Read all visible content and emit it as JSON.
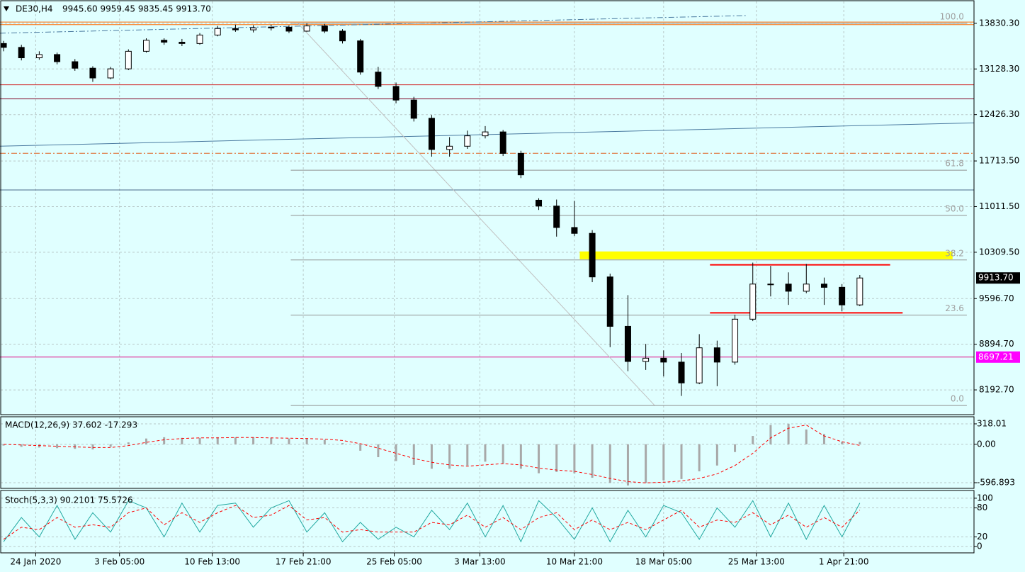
{
  "chart_data": [
    {
      "type": "candlestick",
      "title": "DE30,H4",
      "ohlc_label": "9945.60 9959.45 9835.45 9913.70",
      "xlim": [
        -0.2,
        54.4
      ],
      "xticks": [
        {
          "value": 1.8,
          "label": "24 Jan 2020"
        },
        {
          "value": 6.5,
          "label": "3 Feb 05:00"
        },
        {
          "value": 11.7,
          "label": "10 Feb 13:00"
        },
        {
          "value": 16.8,
          "label": "17 Feb 21:00"
        },
        {
          "value": 21.9,
          "label": "25 Feb 05:00"
        },
        {
          "value": 26.7,
          "label": "3 Mar 13:00"
        },
        {
          "value": 32,
          "label": "10 Mar 21:00"
        },
        {
          "value": 37,
          "label": "18 Mar 05:00"
        },
        {
          "value": 42.2,
          "label": "25 Mar 13:00"
        },
        {
          "value": 47.1,
          "label": "1 Apr 21:00"
        }
      ],
      "ylim": [
        7812,
        14167
      ],
      "yticks": [
        {
          "value": 13830.3,
          "label": "13830.30"
        },
        {
          "value": 13128.3,
          "label": "13128.30"
        },
        {
          "value": 12426.3,
          "label": "12426.30"
        },
        {
          "value": 11713.5,
          "label": "11713.50"
        },
        {
          "value": 11011.5,
          "label": "11011.50"
        },
        {
          "value": 10309.5,
          "label": "10309.50"
        },
        {
          "value": 9596.7,
          "label": "9596.70"
        },
        {
          "value": 8894.7,
          "label": "8894.70"
        },
        {
          "value": 8192.7,
          "label": "8192.70"
        }
      ],
      "grid": true,
      "up_color": "#ffffff",
      "down_color": "#000000",
      "ohlc": [
        [
          13520,
          13560,
          13400,
          13460
        ],
        [
          13460,
          13500,
          13260,
          13300
        ],
        [
          13300,
          13400,
          13270,
          13350
        ],
        [
          13350,
          13380,
          13200,
          13240
        ],
        [
          13240,
          13280,
          13100,
          13140
        ],
        [
          13140,
          13170,
          12930,
          12990
        ],
        [
          12990,
          13160,
          12970,
          13130
        ],
        [
          13130,
          13430,
          13110,
          13400
        ],
        [
          13400,
          13600,
          13380,
          13570
        ],
        [
          13570,
          13600,
          13500,
          13540
        ],
        [
          13540,
          13590,
          13480,
          13520
        ],
        [
          13520,
          13680,
          13500,
          13650
        ],
        [
          13650,
          13790,
          13630,
          13750
        ],
        [
          13750,
          13810,
          13700,
          13730
        ],
        [
          13730,
          13800,
          13690,
          13760
        ],
        [
          13760,
          13810,
          13720,
          13770
        ],
        [
          13770,
          13800,
          13680,
          13710
        ],
        [
          13710,
          13830,
          13700,
          13790
        ],
        [
          13790,
          13820,
          13680,
          13710
        ],
        [
          13710,
          13740,
          13520,
          13560
        ],
        [
          13560,
          13590,
          13040,
          13080
        ],
        [
          13080,
          13160,
          12820,
          12860
        ],
        [
          12860,
          12920,
          12600,
          12650
        ],
        [
          12650,
          12700,
          12320,
          12370
        ],
        [
          12370,
          12420,
          11780,
          11890
        ],
        [
          11890,
          12080,
          11780,
          11940
        ],
        [
          11940,
          12180,
          11900,
          12100
        ],
        [
          12100,
          12250,
          12060,
          12160
        ],
        [
          12160,
          12190,
          11790,
          11830
        ],
        [
          11830,
          11870,
          11450,
          11500
        ],
        [
          11110,
          11140,
          10960,
          11020
        ],
        [
          11020,
          11120,
          10550,
          10690
        ],
        [
          10690,
          11100,
          10560,
          10600
        ],
        [
          10600,
          10650,
          9850,
          9930
        ],
        [
          9930,
          9980,
          8850,
          9170
        ],
        [
          9170,
          9650,
          8480,
          8630
        ],
        [
          8630,
          8900,
          8500,
          8680
        ],
        [
          8680,
          8800,
          8400,
          8620
        ],
        [
          8620,
          8760,
          8100,
          8300
        ],
        [
          8300,
          9050,
          8280,
          8840
        ],
        [
          8840,
          8950,
          8250,
          8620
        ],
        [
          8620,
          9350,
          8580,
          9280
        ],
        [
          9280,
          10150,
          9250,
          9820
        ],
        [
          9820,
          10100,
          9630,
          9820
        ],
        [
          9820,
          10000,
          9500,
          9710
        ],
        [
          9710,
          10130,
          9680,
          9820
        ],
        [
          9820,
          9920,
          9500,
          9770
        ],
        [
          9770,
          9820,
          9400,
          9500
        ],
        [
          9500,
          9959.45,
          9480,
          9913.7
        ]
      ],
      "levels": [
        {
          "price": 13850,
          "color": "#ff6a00",
          "style": "solid",
          "from": -0.2
        },
        {
          "price": 13810,
          "color": "#ff6a00",
          "style": "solid",
          "from": -0.2
        },
        {
          "price": 12885,
          "color": "#d02020",
          "style": "solid",
          "from": -0.2
        },
        {
          "price": 12668,
          "color": "#800020",
          "style": "solid",
          "from": -0.2
        },
        {
          "price": 11832,
          "color": "#e06020",
          "style": "dashdot",
          "from": -0.2
        },
        {
          "price": 11267,
          "color": "#4a6a8a",
          "style": "solid",
          "from": -0.2
        },
        {
          "price": 8697.21,
          "color": "#e0108a",
          "style": "solid",
          "from": -0.2
        }
      ],
      "trend_lines": [
        {
          "start": [
            -0.2,
            11940
          ],
          "end": [
            54.4,
            12299
          ],
          "color": "#4a7aa0",
          "style": "solid"
        },
        {
          "start": [
            -0.2,
            13678
          ],
          "end": [
            41.7,
            13950
          ],
          "color": "#4a7aa0",
          "style": "dashdot"
        },
        {
          "start": [
            16.5,
            13830.3
          ],
          "end": [
            36.5,
            7953
          ],
          "color": "#c0c0c0",
          "style": "solid"
        }
      ],
      "fibo": {
        "from": 16.1,
        "to": 54,
        "color": "#909090",
        "levels": [
          {
            "value": 13830.3,
            "label": "100.0"
          },
          {
            "value": 11571,
            "label": "61.8"
          },
          {
            "value": 10876,
            "label": "50.0"
          },
          {
            "value": 10191,
            "label": "38.2"
          },
          {
            "value": 9344,
            "label": "23.6"
          },
          {
            "value": 7953,
            "label": "0.0"
          }
        ]
      },
      "zones": [
        {
          "from": 32.3,
          "to": 53.2,
          "low": 10202,
          "high": 10322,
          "color": "#ffff00"
        }
      ],
      "segments": [
        {
          "price": 10116,
          "from": 39.6,
          "to": 49.7,
          "color": "#ff0000"
        },
        {
          "price": 9377,
          "from": 39.6,
          "to": 50.4,
          "color": "#ff0000"
        }
      ],
      "price_tags": [
        {
          "value": 9913.7,
          "label": "9913.70",
          "bg": "#000000",
          "fg": "#ffffff"
        },
        {
          "value": 8697.21,
          "bg": "#ff00ff",
          "fg": "#ffffff"
        }
      ]
    },
    {
      "type": "macd",
      "title": "MACD(12,26,9) 37.602 -17.293",
      "ylim": [
        -674,
        428
      ],
      "yticks": [
        {
          "value": 318.01,
          "label": "318.01"
        },
        {
          "value": 0,
          "label": "0.00"
        },
        -596.893
      ],
      "series": [
        {
          "color": "#a8a8a8",
          "style": "histogram",
          "values": [
            -20,
            -40,
            -50,
            -60,
            -70,
            -80,
            -40,
            30,
            90,
            110,
            100,
            100,
            110,
            110,
            110,
            100,
            90,
            90,
            70,
            20,
            -100,
            -200,
            -260,
            -320,
            -380,
            -380,
            -330,
            -270,
            -300,
            -380,
            -450,
            -430,
            -450,
            -520,
            -600,
            -640,
            -600,
            -560,
            -540,
            -420,
            -330,
            -120,
            130,
            300,
            320,
            230,
            160,
            40,
            37.602
          ]
        },
        {
          "color": "#ff0000",
          "style": "dashed",
          "values": [
            0,
            -10,
            -20,
            -30,
            -40,
            -50,
            -50,
            -20,
            30,
            70,
            90,
            100,
            100,
            105,
            105,
            100,
            95,
            90,
            80,
            60,
            10,
            -60,
            -140,
            -220,
            -280,
            -320,
            -340,
            -320,
            -300,
            -320,
            -370,
            -400,
            -420,
            -470,
            -530,
            -580,
            -600,
            -590,
            -570,
            -530,
            -460,
            -330,
            -140,
            100,
            250,
            300,
            130,
            40,
            -17.293
          ]
        }
      ]
    },
    {
      "type": "stochastic",
      "title": "Stoch(5,3,3) 90.2101 75.5726",
      "ylim": [
        -13,
        116
      ],
      "yticks": [
        100,
        80,
        20,
        0
      ],
      "series": [
        {
          "color": "#20a8a0",
          "style": "solid",
          "values": [
            10,
            60,
            20,
            85,
            15,
            70,
            30,
            95,
            80,
            20,
            90,
            30,
            85,
            90,
            40,
            80,
            95,
            30,
            70,
            10,
            50,
            15,
            40,
            20,
            75,
            35,
            90,
            20,
            85,
            10,
            95,
            60,
            15,
            80,
            10,
            75,
            20,
            85,
            70,
            15,
            80,
            40,
            95,
            20,
            90,
            15,
            85,
            20,
            90.2101
          ]
        },
        {
          "color": "#ff0000",
          "style": "dashed",
          "values": [
            15,
            40,
            35,
            60,
            40,
            45,
            40,
            70,
            80,
            45,
            70,
            50,
            70,
            85,
            60,
            65,
            85,
            55,
            60,
            30,
            35,
            30,
            30,
            30,
            50,
            45,
            65,
            40,
            60,
            35,
            60,
            70,
            35,
            55,
            35,
            50,
            35,
            55,
            75,
            40,
            55,
            50,
            70,
            45,
            65,
            40,
            60,
            40,
            75.5726
          ]
        }
      ]
    }
  ]
}
